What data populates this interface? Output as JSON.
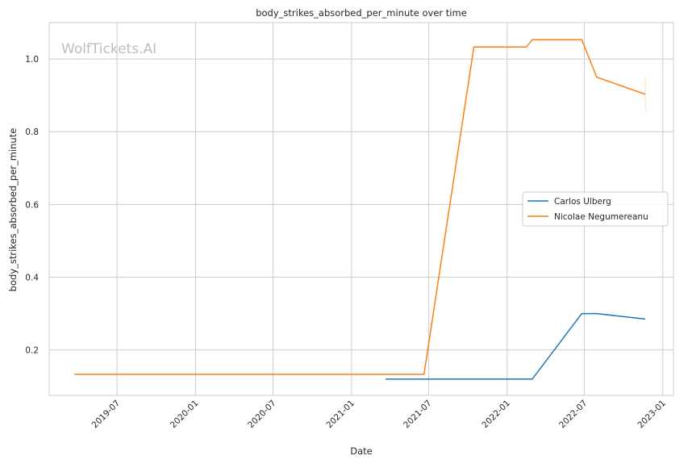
{
  "chart_data": {
    "type": "line",
    "title": "body_strikes_absorbed_per_minute over time",
    "xlabel": "Date",
    "ylabel": "body_strikes_absorbed_per_minute",
    "watermark": "WolfTickets.AI",
    "x_ticks": [
      "2019-07",
      "2020-01",
      "2020-07",
      "2021-01",
      "2021-07",
      "2022-01",
      "2022-07",
      "2023-01"
    ],
    "y_ticks": [
      "0.2",
      "0.4",
      "0.6",
      "0.8",
      "1.0"
    ],
    "xlim": [
      "2019-01-23",
      "2023-01-26"
    ],
    "ylim": [
      0.075,
      1.1
    ],
    "grid": true,
    "legend_position": "center-right",
    "series": [
      {
        "name": "Carlos Ulberg",
        "color": "#1f77b4",
        "points": [
          [
            "2021-03-22",
            0.12
          ],
          [
            "2022-03-01",
            0.12
          ],
          [
            "2022-06-25",
            0.3
          ],
          [
            "2022-07-30",
            0.3
          ],
          [
            "2022-11-21",
            0.285
          ]
        ]
      },
      {
        "name": "Nicolae Negumereanu",
        "color": "#ff7f0e",
        "points": [
          [
            "2019-03-23",
            0.133
          ],
          [
            "2021-06-20",
            0.133
          ],
          [
            "2021-10-15",
            1.033
          ],
          [
            "2022-02-15",
            1.033
          ],
          [
            "2022-03-01",
            1.053
          ],
          [
            "2022-06-25",
            1.053
          ],
          [
            "2022-07-30",
            0.95
          ],
          [
            "2022-11-21",
            0.903
          ]
        ],
        "error_bar": {
          "x": "2022-11-21",
          "low": 0.855,
          "high": 0.952
        }
      }
    ]
  }
}
